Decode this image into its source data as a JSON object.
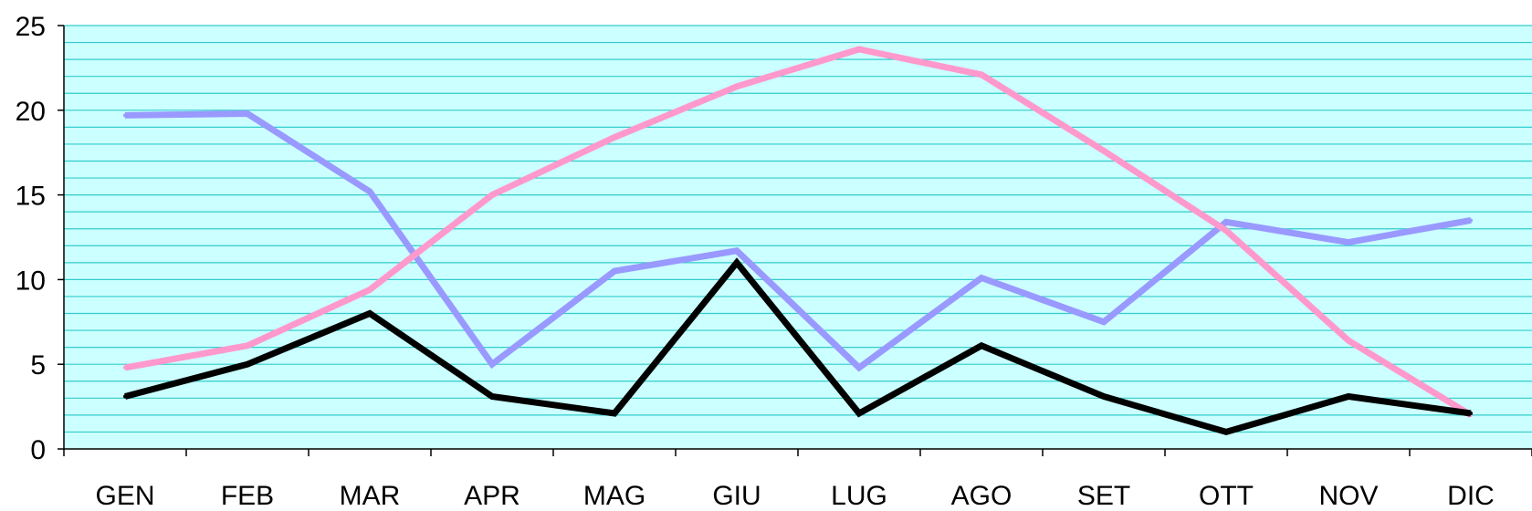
{
  "chart_data": {
    "type": "line",
    "categories": [
      "GEN",
      "FEB",
      "MAR",
      "APR",
      "MAG",
      "GIU",
      "LUG",
      "AGO",
      "SET",
      "OTT",
      "NOV",
      "DIC"
    ],
    "y_ticks": [
      "0",
      "5",
      "10",
      "15",
      "20",
      "25"
    ],
    "ylim": [
      0,
      25
    ],
    "grid": true,
    "minor_grid_step": 1,
    "background_color": "#ccffff",
    "grid_color": "#33cccc",
    "series": [
      {
        "color": "#9999ff",
        "values": [
          19.7,
          19.8,
          15.2,
          5.0,
          10.5,
          11.7,
          4.8,
          10.1,
          7.5,
          13.4,
          12.2,
          13.5
        ]
      },
      {
        "color": "#ff99cc",
        "values": [
          4.8,
          6.1,
          9.4,
          15.0,
          18.4,
          21.4,
          23.6,
          22.1,
          17.6,
          12.9,
          6.4,
          2.0
        ]
      },
      {
        "color": "#000000",
        "values": [
          3.1,
          5.0,
          8.0,
          3.1,
          2.1,
          11.0,
          2.1,
          6.1,
          3.1,
          1.0,
          3.1,
          2.1
        ]
      }
    ]
  }
}
